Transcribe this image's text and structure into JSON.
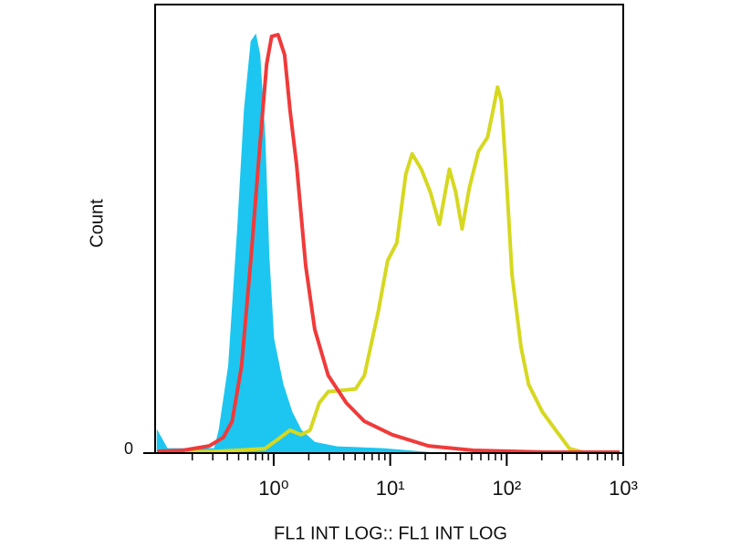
{
  "chart_data": {
    "type": "histogram-overlay",
    "x_label": "FL1 INT LOG:: FL1 INT LOG",
    "y_label": "Count",
    "x_log": true,
    "xlim": [
      0.096,
      1000
    ],
    "xticks": [
      {
        "value": 1,
        "label": "10⁰"
      },
      {
        "value": 10,
        "label": "10¹"
      },
      {
        "value": 100,
        "label": "10²"
      },
      {
        "value": 1000,
        "label": "10³"
      }
    ],
    "xminorticks": [
      0.2,
      0.3,
      0.4,
      0.5,
      0.6,
      0.7,
      0.8,
      0.9,
      2,
      3,
      4,
      5,
      6,
      7,
      8,
      9,
      20,
      30,
      40,
      50,
      60,
      70,
      80,
      90,
      200,
      300,
      400,
      500,
      600,
      700,
      800,
      900
    ],
    "ylim": [
      0,
      100
    ],
    "yticks": [
      0
    ],
    "series": [
      {
        "color": "#1cc6f0",
        "fill": true,
        "x": [
          0.1,
          0.122,
          0.31,
          0.34,
          0.41,
          0.49,
          0.56,
          0.64,
          0.7,
          0.76,
          0.84,
          0.91,
          1.0,
          1.2,
          1.43,
          1.72,
          2.25,
          3.5,
          8.7,
          25
        ],
        "values": [
          5,
          1,
          1.0,
          5.1,
          19.4,
          50,
          76.5,
          91.8,
          93.3,
          88.8,
          70.4,
          43.9,
          25.5,
          15.3,
          9.2,
          5.1,
          2.4,
          1.4,
          1.0,
          0
        ]
      },
      {
        "color": "#d6d820",
        "fill": false,
        "x": [
          0.166,
          0.34,
          0.84,
          1.09,
          1.38,
          1.72,
          2.05,
          2.46,
          2.94,
          5.05,
          6.0,
          7.9,
          9.5,
          11.4,
          13.6,
          15.4,
          18.5,
          22.1,
          26.4,
          32.2,
          36.5,
          41.4,
          47.8,
          57.3,
          68.5,
          76.4,
          83.5,
          89.8,
          97.8,
          111,
          133,
          154,
          202,
          264,
          346,
          455,
          930
        ],
        "values": [
          0.2,
          0.4,
          1.0,
          3.1,
          5.1,
          4.1,
          5.1,
          11.2,
          13.7,
          14.3,
          17.3,
          31.6,
          42.9,
          46.9,
          62.2,
          66.7,
          63.3,
          58.2,
          51.0,
          63.3,
          58.2,
          50,
          59.2,
          67.3,
          70.4,
          76.5,
          81.6,
          78.6,
          64.3,
          39.8,
          23.5,
          15.3,
          9.2,
          5.1,
          1.0,
          0.2,
          0.2
        ]
      },
      {
        "color": "#f03a3a",
        "fill": false,
        "x": [
          0.1,
          0.166,
          0.28,
          0.37,
          0.44,
          0.53,
          0.64,
          0.76,
          0.87,
          0.96,
          1.09,
          1.24,
          1.38,
          1.57,
          1.88,
          2.25,
          2.94,
          4.2,
          6.0,
          10.4,
          21.3,
          52,
          220,
          930
        ],
        "values": [
          0.4,
          0.6,
          1.6,
          3.5,
          7.1,
          19.4,
          43.9,
          68.4,
          86.7,
          92.9,
          93.3,
          88.8,
          76.5,
          64.3,
          41.8,
          27.6,
          17.3,
          11.2,
          7.1,
          4.1,
          1.6,
          0.6,
          0.2,
          0.2
        ]
      }
    ]
  }
}
